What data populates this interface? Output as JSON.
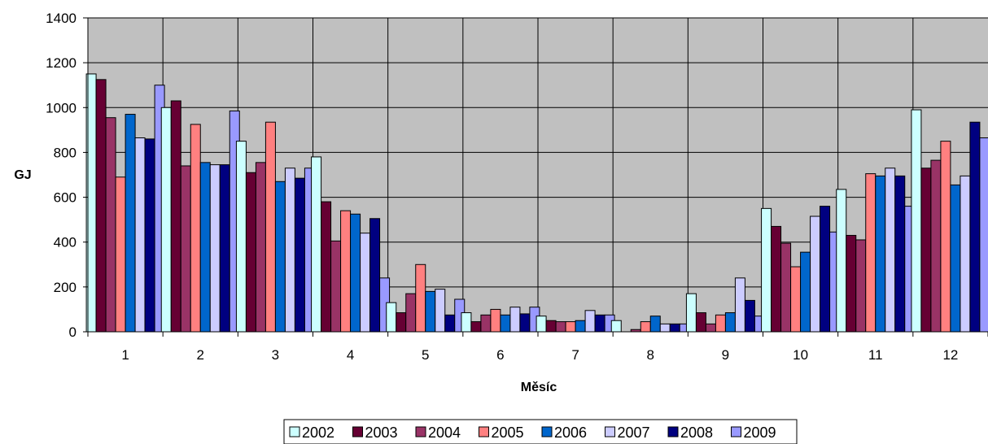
{
  "chart_data": {
    "type": "bar",
    "xlabel": "Měsíc",
    "ylabel": "GJ",
    "ylim": [
      0,
      1400
    ],
    "yticks": [
      0,
      200,
      400,
      600,
      800,
      1000,
      1200,
      1400
    ],
    "grid": true,
    "legend_position": "bottom",
    "categories": [
      "1",
      "2",
      "3",
      "4",
      "5",
      "6",
      "7",
      "8",
      "9",
      "10",
      "11",
      "12"
    ],
    "series": [
      {
        "name": "2002",
        "color": "#ccffff",
        "values": [
          1150,
          1000,
          850,
          780,
          130,
          85,
          70,
          50,
          170,
          550,
          635,
          990
        ]
      },
      {
        "name": "2003",
        "color": "#660033",
        "values": [
          1125,
          1030,
          710,
          580,
          85,
          45,
          50,
          0,
          85,
          470,
          430,
          730
        ]
      },
      {
        "name": "2004",
        "color": "#993366",
        "values": [
          955,
          740,
          755,
          405,
          170,
          75,
          45,
          10,
          35,
          395,
          410,
          765
        ]
      },
      {
        "name": "2005",
        "color": "#ff8080",
        "values": [
          690,
          925,
          935,
          540,
          300,
          100,
          45,
          45,
          75,
          290,
          705,
          850
        ]
      },
      {
        "name": "2006",
        "color": "#0066cc",
        "values": [
          970,
          755,
          670,
          525,
          180,
          75,
          50,
          70,
          85,
          355,
          695,
          655
        ]
      },
      {
        "name": "2007",
        "color": "#ccccff",
        "values": [
          865,
          745,
          730,
          440,
          190,
          110,
          95,
          35,
          240,
          515,
          730,
          695
        ]
      },
      {
        "name": "2008",
        "color": "#000080",
        "values": [
          860,
          745,
          685,
          505,
          75,
          80,
          75,
          35,
          140,
          560,
          695,
          935
        ]
      },
      {
        "name": "2009",
        "color": "#9999ff",
        "values": [
          1100,
          985,
          730,
          240,
          145,
          110,
          75,
          35,
          70,
          445,
          560,
          865
        ]
      }
    ]
  }
}
